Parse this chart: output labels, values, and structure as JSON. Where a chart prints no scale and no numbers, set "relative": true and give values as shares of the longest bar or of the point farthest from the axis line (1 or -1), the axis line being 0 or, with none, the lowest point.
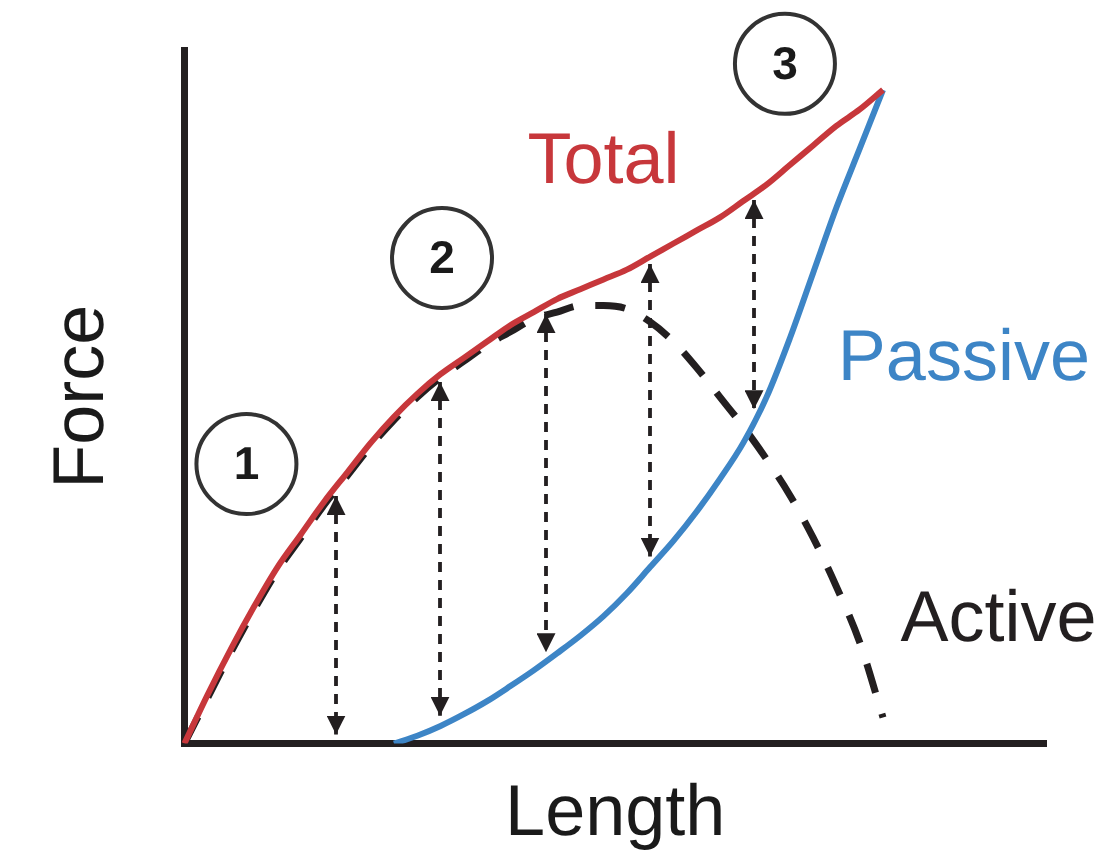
{
  "chart_data": {
    "type": "line",
    "xlabel": "Length",
    "ylabel": "Force",
    "relative": true,
    "grid": false,
    "legend": false,
    "marker": "none",
    "tick_labels": false,
    "categories": [
      null,
      null,
      null,
      null,
      null,
      null,
      null,
      null,
      null,
      null,
      null,
      null,
      null,
      null,
      null,
      null,
      null,
      null,
      null,
      null,
      null,
      null,
      null,
      null,
      null,
      null,
      null,
      null,
      null,
      null,
      null,
      null,
      null,
      null,
      null,
      null,
      null,
      null
    ],
    "series": [
      {
        "name": "Total",
        "color": "#c7373b",
        "values": [
          0,
          0.075,
          0.145,
          0.21,
          0.27,
          0.32,
          0.37,
          0.415,
          0.46,
          0.5,
          0.535,
          0.565,
          0.59,
          0.615,
          0.64,
          0.66,
          0.68,
          0.695,
          0.71,
          0.725,
          0.745,
          0.765,
          0.785,
          0.805,
          0.83,
          0.855,
          0.885,
          0.915,
          0.945,
          0.97,
          1,
          null,
          null,
          null,
          null,
          null,
          null,
          null
        ]
      },
      {
        "name": "Passive",
        "color": "#3d85c6",
        "values": [
          null,
          null,
          null,
          null,
          null,
          null,
          null,
          null,
          null,
          0,
          0.012,
          0.027,
          0.045,
          0.065,
          0.088,
          0.112,
          0.138,
          0.165,
          0.195,
          0.23,
          0.27,
          0.31,
          0.355,
          0.405,
          0.46,
          0.53,
          0.62,
          0.72,
          0.82,
          0.91,
          1,
          null,
          null,
          null,
          null,
          null,
          null,
          null
        ]
      },
      {
        "name": "Active",
        "color": "#231f20",
        "line_style": "dashed",
        "values": [
          0,
          0.07,
          0.14,
          0.205,
          0.265,
          0.315,
          0.365,
          0.41,
          0.455,
          0.495,
          0.53,
          0.56,
          0.585,
          0.61,
          0.63,
          0.65,
          0.66,
          0.67,
          0.67,
          0.665,
          0.645,
          0.615,
          0.575,
          0.53,
          0.485,
          0.435,
          0.38,
          0.315,
          0.24,
          0.155,
          0.04,
          null,
          null,
          null,
          null,
          null,
          null,
          null
        ]
      }
    ],
    "annotations": [
      "1",
      "2",
      "3"
    ]
  }
}
